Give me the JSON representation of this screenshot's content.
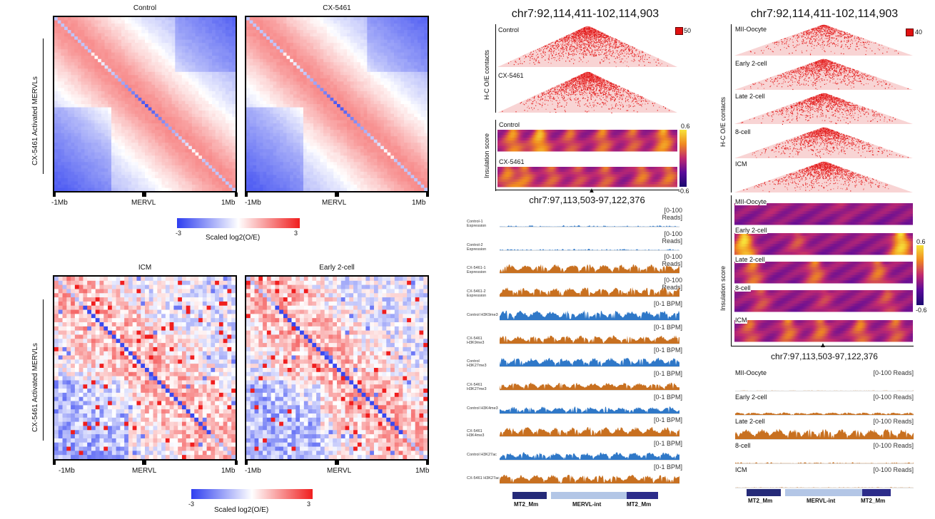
{
  "left_panel": {
    "yaxis_label": "CX-5461 Activated MERVLs",
    "top_titles": [
      "Control",
      "CX-5461"
    ],
    "bottom_titles": [
      "ICM",
      "Early 2-cell"
    ],
    "xticks": [
      "-1Mb",
      "MERVL",
      "1Mb"
    ],
    "colorbar_label": "Scaled log2(O/E)",
    "colorbar_min": "-3",
    "colorbar_max": "3",
    "colors": {
      "low": "#2e3ef0",
      "mid": "#ffffff",
      "high": "#f01e1e"
    }
  },
  "middle_panel": {
    "title": "chr7:92,114,411-102,114,903",
    "hic_label": "H-C O/E contacts",
    "hic_tracks": [
      "Control",
      "CX-5461"
    ],
    "hic_scale": "50",
    "ins_label": "Insulation score",
    "ins_tracks": [
      "Control",
      "CX-5461"
    ],
    "ins_max": "0.6",
    "ins_min": "-0.6",
    "zoom_title": "chr7:97,113,503-97,122,376",
    "tracks": [
      {
        "name": "Control-1 Expression",
        "range": "[0-100 Reads]",
        "color": "#2f78c8",
        "level": 0.15
      },
      {
        "name": "Control-2 Expression",
        "range": "[0-100 Reads]",
        "color": "#2f78c8",
        "level": 0.12
      },
      {
        "name": "CX-5461-1 Expression",
        "range": "[0-100 Reads]",
        "color": "#c87020",
        "level": 0.7
      },
      {
        "name": "CX-5461-2 Expression",
        "range": "[0-100 Reads]",
        "color": "#c87020",
        "level": 0.75
      },
      {
        "name": "Control H3K9me3",
        "range": "[0-1 BPM]",
        "color": "#2f78c8",
        "level": 0.8
      },
      {
        "name": "CX-5461 H3K9me3",
        "range": "[0-1 BPM]",
        "color": "#c87020",
        "level": 0.65
      },
      {
        "name": "Control H3K27me3",
        "range": "[0-1 BPM]",
        "color": "#2f78c8",
        "level": 0.7
      },
      {
        "name": "CX-5461 H3K27me3",
        "range": "[0-1 BPM]",
        "color": "#c87020",
        "level": 0.6
      },
      {
        "name": "Control H3K4me3",
        "range": "[0-1 BPM]",
        "color": "#2f78c8",
        "level": 0.55
      },
      {
        "name": "CX-5461 H3K4me3",
        "range": "[0-1 BPM]",
        "color": "#c87020",
        "level": 0.75
      },
      {
        "name": "Control H3K27ac",
        "range": "[0-1 BPM]",
        "color": "#2f78c8",
        "level": 0.6
      },
      {
        "name": "CX-5461 H3K27ac",
        "range": "[0-1 BPM]",
        "color": "#c87020",
        "level": 0.7
      }
    ],
    "genes": [
      "MT2_Mm",
      "MERVL-int",
      "MT2_Mm"
    ]
  },
  "right_panel": {
    "title": "chr7:92,114,411-102,114,903",
    "hic_label": "H-C O/E contacts",
    "hic_tracks": [
      "MII-Oocyte",
      "Early 2-cell",
      "Late 2-cell",
      "8-cell",
      "ICM"
    ],
    "hic_scale": "40",
    "ins_label": "Insulation score",
    "ins_tracks": [
      "MII-Oocyte",
      "Early 2-cell",
      "Late 2-cell",
      "8-cell",
      "ICM"
    ],
    "ins_max": "0.6",
    "ins_min": "-0.6",
    "zoom_title": "chr7:97,113,503-97,122,376",
    "tracks": [
      {
        "name": "MII-Oocyte",
        "range": "[0-100 Reads]",
        "level": 0.02
      },
      {
        "name": "Early 2-cell",
        "range": "[0-100 Reads]",
        "level": 0.2
      },
      {
        "name": "Late 2-cell",
        "range": "[0-100 Reads]",
        "level": 0.85
      },
      {
        "name": "8-cell",
        "range": "[0-100 Reads]",
        "level": 0.1
      },
      {
        "name": "ICM",
        "range": "[0-100 Reads]",
        "level": 0.04
      }
    ],
    "genes": [
      "MT2_Mm",
      "MERVL-int",
      "MT2_Mm"
    ]
  }
}
